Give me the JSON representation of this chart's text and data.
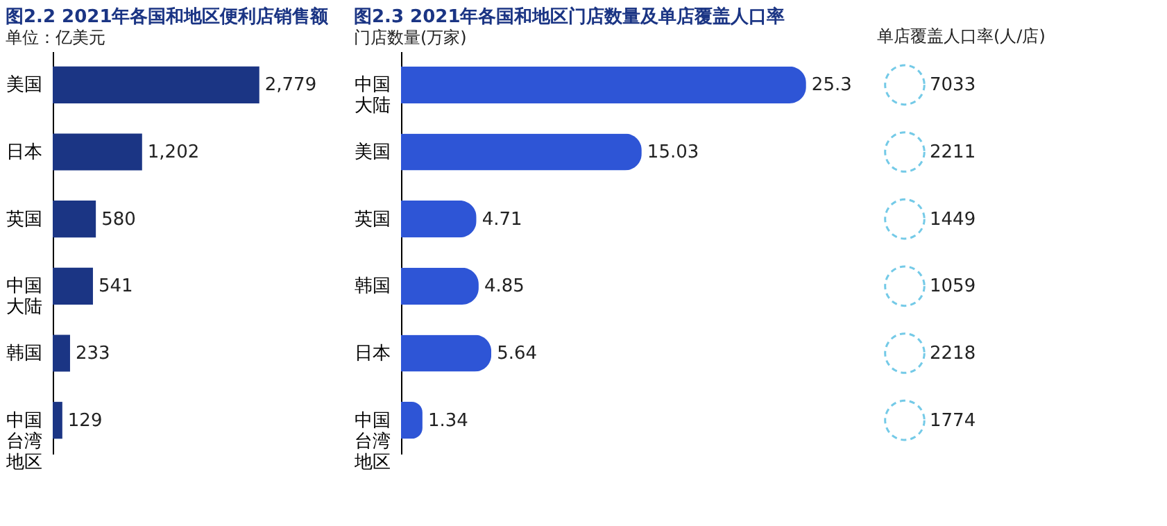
{
  "chart_data": [
    {
      "type": "bar",
      "orientation": "horizontal",
      "title": "图2.2 2021年各国和地区便利店销售额",
      "annotations": [
        "单位：亿美元"
      ],
      "categories": [
        "美国",
        "日本",
        "英国",
        "中国大陆",
        "韩国",
        "中国台湾地区"
      ],
      "values": [
        2779,
        1202,
        580,
        541,
        233,
        129
      ],
      "value_labels": [
        "2,779",
        "1,202",
        "580",
        "541",
        "233",
        "129"
      ],
      "color": "#1b3584"
    },
    {
      "type": "bar",
      "orientation": "horizontal",
      "title": "图2.3 2021年各国和地区门店数量及单店覆盖人口率",
      "categories": [
        "中国大陆",
        "美国",
        "英国",
        "韩国",
        "日本",
        "中国台湾地区"
      ],
      "data_labels": true,
      "series": [
        {
          "name": "门店数量(万家)",
          "color": "#2e55d6",
          "values": [
            25.3,
            15.03,
            4.71,
            4.85,
            5.64,
            1.34
          ]
        }
      ]
    },
    {
      "type": "other",
      "title": "单店覆盖人口率(人/店)",
      "values": [
        7033,
        2211,
        1449,
        1059,
        2218,
        1774
      ],
      "data_labels": true
    }
  ]
}
